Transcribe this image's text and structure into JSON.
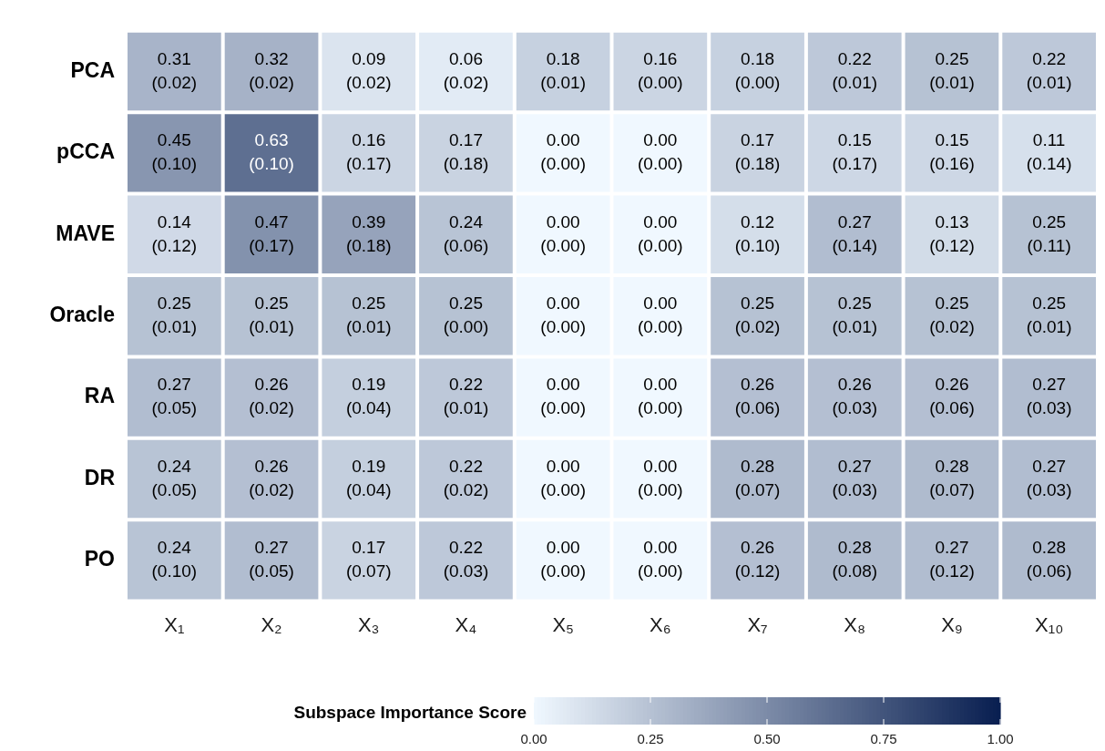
{
  "chart_data": {
    "type": "heatmap",
    "categories": [
      "X₁",
      "X₂",
      "X₃",
      "X₄",
      "X₅",
      "X₆",
      "X₇",
      "X₈",
      "X₉",
      "X₁₀"
    ],
    "y_categories": [
      "PCA",
      "pCCA",
      "MAVE",
      "Oracle",
      "RA",
      "DR",
      "PO"
    ],
    "cells": [
      [
        0.31,
        0.32,
        0.09,
        0.06,
        0.18,
        0.16,
        0.18,
        0.22,
        0.25,
        0.22
      ],
      [
        0.45,
        0.63,
        0.16,
        0.17,
        0.0,
        0.0,
        0.17,
        0.15,
        0.15,
        0.11
      ],
      [
        0.14,
        0.47,
        0.39,
        0.24,
        0.0,
        0.0,
        0.12,
        0.27,
        0.13,
        0.25
      ],
      [
        0.25,
        0.25,
        0.25,
        0.25,
        0.0,
        0.0,
        0.25,
        0.25,
        0.25,
        0.25
      ],
      [
        0.27,
        0.26,
        0.19,
        0.22,
        0.0,
        0.0,
        0.26,
        0.26,
        0.26,
        0.27
      ],
      [
        0.24,
        0.26,
        0.19,
        0.22,
        0.0,
        0.0,
        0.28,
        0.27,
        0.28,
        0.27
      ],
      [
        0.24,
        0.27,
        0.17,
        0.22,
        0.0,
        0.0,
        0.26,
        0.28,
        0.27,
        0.28
      ]
    ],
    "cell_labels": [
      [
        "0.31\n(0.02)",
        "0.32\n(0.02)",
        "0.09\n(0.02)",
        "0.06\n(0.02)",
        "0.18\n(0.01)",
        "0.16\n(0.00)",
        "0.18\n(0.00)",
        "0.22\n(0.01)",
        "0.25\n(0.01)",
        "0.22\n(0.01)"
      ],
      [
        "0.45\n(0.10)",
        "0.63\n(0.10)",
        "0.16\n(0.17)",
        "0.17\n(0.18)",
        "0.00\n(0.00)",
        "0.00\n(0.00)",
        "0.17\n(0.18)",
        "0.15\n(0.17)",
        "0.15\n(0.16)",
        "0.11\n(0.14)"
      ],
      [
        "0.14\n(0.12)",
        "0.47\n(0.17)",
        "0.39\n(0.18)",
        "0.24\n(0.06)",
        "0.00\n(0.00)",
        "0.00\n(0.00)",
        "0.12\n(0.10)",
        "0.27\n(0.14)",
        "0.13\n(0.12)",
        "0.25\n(0.11)"
      ],
      [
        "0.25\n(0.01)",
        "0.25\n(0.01)",
        "0.25\n(0.01)",
        "0.25\n(0.00)",
        "0.00\n(0.00)",
        "0.00\n(0.00)",
        "0.25\n(0.02)",
        "0.25\n(0.01)",
        "0.25\n(0.02)",
        "0.25\n(0.01)"
      ],
      [
        "0.27\n(0.05)",
        "0.26\n(0.02)",
        "0.19\n(0.04)",
        "0.22\n(0.01)",
        "0.00\n(0.00)",
        "0.00\n(0.00)",
        "0.26\n(0.06)",
        "0.26\n(0.03)",
        "0.26\n(0.06)",
        "0.27\n(0.03)"
      ],
      [
        "0.24\n(0.05)",
        "0.26\n(0.02)",
        "0.19\n(0.04)",
        "0.22\n(0.02)",
        "0.00\n(0.00)",
        "0.00\n(0.00)",
        "0.28\n(0.07)",
        "0.27\n(0.03)",
        "0.28\n(0.07)",
        "0.27\n(0.03)"
      ],
      [
        "0.24\n(0.10)",
        "0.27\n(0.05)",
        "0.17\n(0.07)",
        "0.22\n(0.03)",
        "0.00\n(0.00)",
        "0.00\n(0.00)",
        "0.26\n(0.12)",
        "0.28\n(0.08)",
        "0.27\n(0.12)",
        "0.28\n(0.06)"
      ]
    ],
    "clabel": "Subspace Importance Score",
    "clim": [
      0,
      1
    ],
    "cticks": [
      {
        "value": 0,
        "label": "0.00"
      },
      {
        "value": 0.25,
        "label": "0.25"
      },
      {
        "value": 0.5,
        "label": "0.50"
      },
      {
        "value": 0.75,
        "label": "0.75"
      },
      {
        "value": 1,
        "label": "1.00"
      }
    ]
  }
}
